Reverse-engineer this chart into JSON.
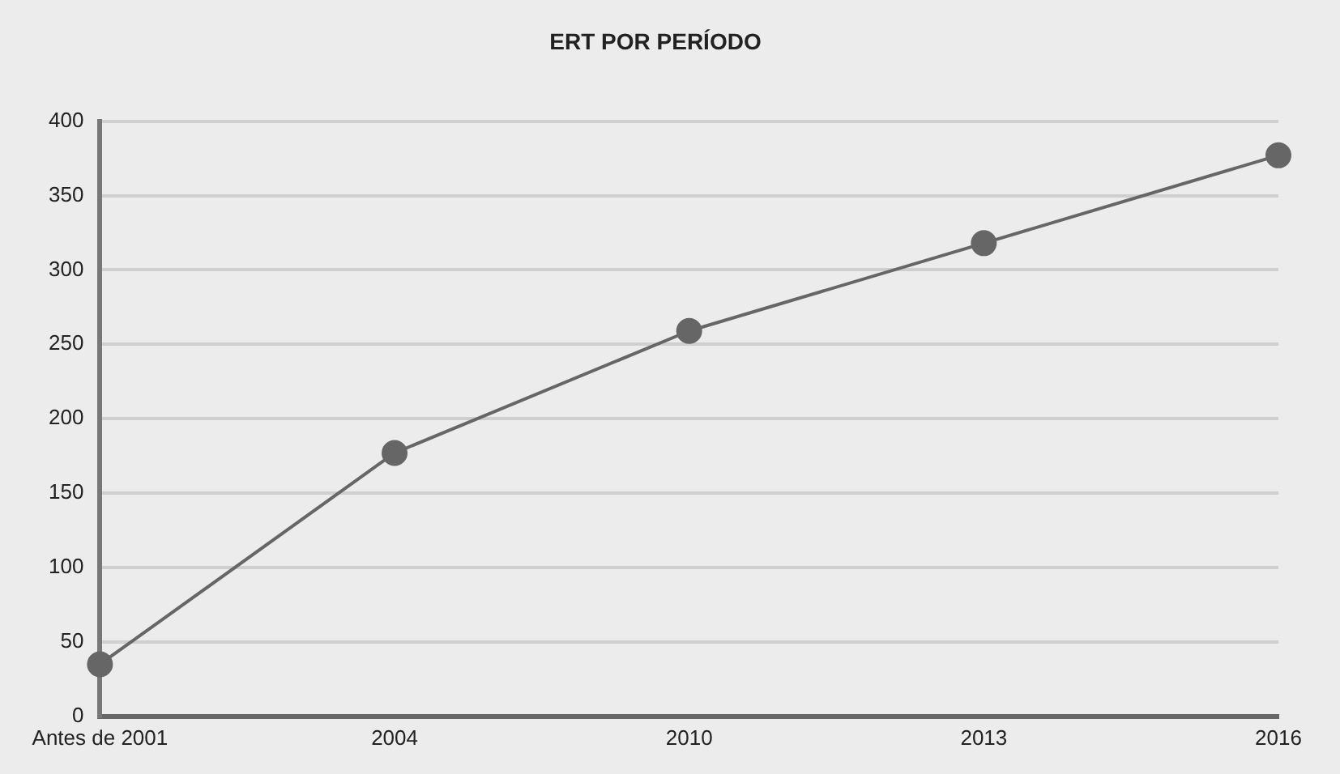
{
  "chart_data": {
    "type": "line",
    "title": "ERT POR PERÍODO",
    "categories": [
      "Antes de 2001",
      "2004",
      "2010",
      "2013",
      "2016"
    ],
    "series": [
      {
        "color": "#666666",
        "values": [
          35,
          177,
          259,
          318,
          377
        ]
      }
    ],
    "ylim": [
      0,
      400
    ],
    "yticks": [
      0,
      50,
      100,
      150,
      200,
      250,
      300,
      350,
      400
    ],
    "grid": "y",
    "legend": false,
    "marker": "circle",
    "line_style": "solid"
  }
}
